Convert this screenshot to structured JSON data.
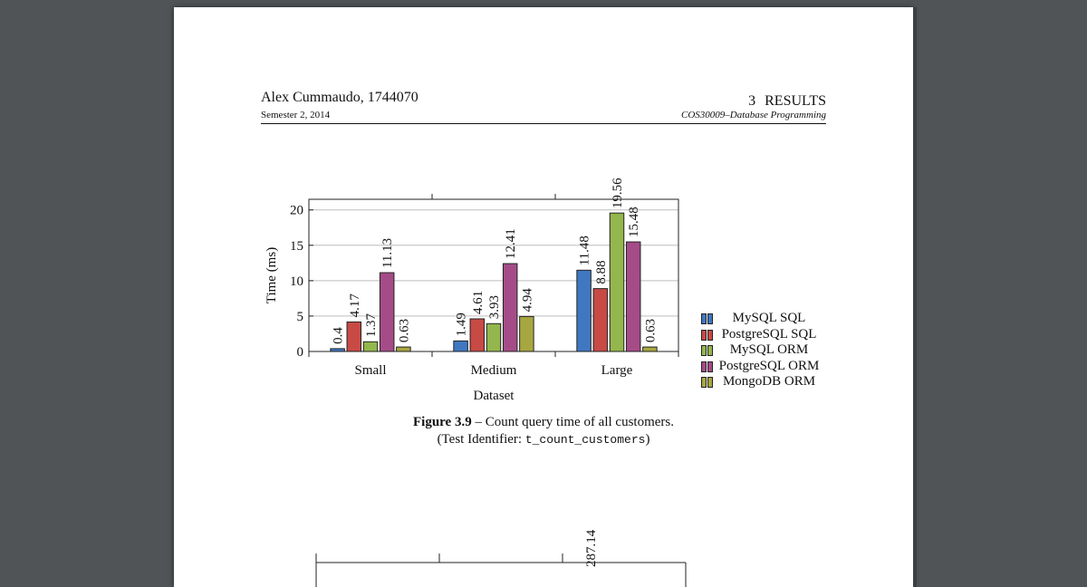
{
  "header": {
    "author": "Alex Cummaudo, 1744070",
    "semester": "Semester 2, 2014",
    "section": "3   RESULTS",
    "course": "COS30009–Database Programming"
  },
  "figure": {
    "caption_label": "Figure 3.9",
    "caption_text": " – Count query time of all customers.",
    "caption_line2_prefix": "(Test Identifier: ",
    "caption_identifier": "t_count_customers",
    "caption_line2_suffix": ")"
  },
  "colors": {
    "mysql_sql": "#3f78c1",
    "postgresql_sql": "#c84a45",
    "mysql_orm": "#93b64d",
    "postgresql_orm": "#a54c88",
    "mongodb_orm": "#a8a641"
  },
  "chart_data": [
    {
      "type": "bar",
      "categories": [
        "Small",
        "Medium",
        "Large"
      ],
      "series": [
        {
          "name": "MySQL SQL",
          "values": [
            0.4,
            1.49,
            11.48
          ]
        },
        {
          "name": "PostgreSQL SQL",
          "values": [
            4.17,
            4.61,
            8.88
          ]
        },
        {
          "name": "MySQL ORM",
          "values": [
            1.37,
            3.93,
            19.56
          ]
        },
        {
          "name": "PostgreSQL ORM",
          "values": [
            11.13,
            12.41,
            15.48
          ]
        },
        {
          "name": "MongoDB ORM",
          "values": [
            0.63,
            4.94,
            0.63
          ]
        }
      ],
      "value_labels": [
        [
          "0.4",
          "1.49",
          "11.48"
        ],
        [
          "4.17",
          "4.61",
          "8.88"
        ],
        [
          "1.37",
          "3.93",
          "19.56"
        ],
        [
          "11.13",
          "12.41",
          "15.48"
        ],
        [
          "0.63",
          "4.94",
          "0.63"
        ]
      ],
      "xlabel": "Dataset",
      "ylabel": "Time (ms)",
      "ylim": [
        0,
        21.5
      ],
      "yticks": [
        "0",
        "5",
        "10",
        "15",
        "20"
      ],
      "grid": true,
      "legend": "right"
    },
    {
      "type": "bar",
      "partial": true,
      "visible_value_labels": [
        "287.14"
      ]
    }
  ]
}
